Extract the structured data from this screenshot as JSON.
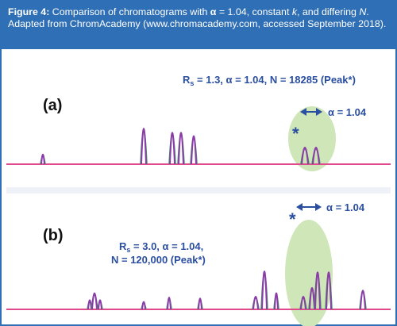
{
  "colors": {
    "border": "#2f6fb6",
    "caption_bg": "#2f6fb6",
    "caption_text": "#ffffff",
    "baseline": "#e04a8c",
    "peak_purple": "#8a3da8",
    "peak_green": "#3aa35a",
    "peak_blue": "#3b5fc0",
    "annotation_text": "#2a4ea0",
    "highlight_ellipse": "#cfe6b8"
  },
  "caption": {
    "figure_label": "Figure 4:",
    "text_1": " Comparison of chromatograms with ",
    "alpha_symbol": "α",
    "text_2": " = 1.04, constant ",
    "k_symbol": "k",
    "text_3": ", and differing ",
    "n_symbol": "N",
    "text_4": ". Adapted from ChromAcademy (www.chromacademy.com, accessed September 2018)."
  },
  "chart_data": [
    {
      "type": "line",
      "panel_label": "(a)",
      "annotation_rs_symbol": "R",
      "annotation_rs_sub": "s",
      "annotation_rest": " = 1.3, α = 1.04, N = 18285 (Peak*)",
      "alpha_label": "α = 1.04",
      "peak_star": "*",
      "peaks": [
        0.1,
        0.55,
        0.48,
        0.48,
        0.42,
        0.22,
        0.22
      ]
    },
    {
      "type": "line",
      "panel_label": "(b)",
      "annotation_line1_rs_symbol": "R",
      "annotation_line1_rs_sub": "s",
      "annotation_line1_rest": " = 3.0, α = 1.04,",
      "annotation_line2": "N = 120,000 (Peak*)",
      "alpha_label": "α = 1.04",
      "peak_star": "*",
      "peaks": [
        0.12,
        0.28,
        0.12,
        0.08,
        0.18,
        0.16,
        0.2,
        0.78,
        0.28,
        0.2,
        0.4,
        0.76,
        0.76,
        0.34
      ]
    }
  ]
}
